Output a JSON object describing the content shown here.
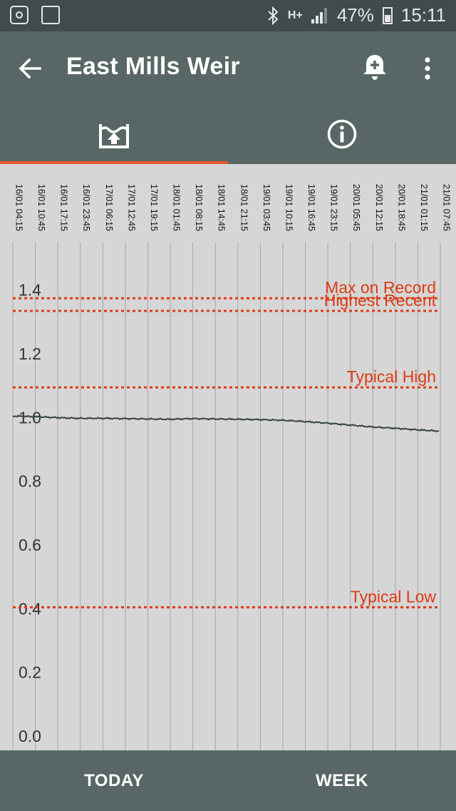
{
  "status_bar": {
    "left_icons": [
      "instagram-icon",
      "email-alert-icon"
    ],
    "right_icons": [
      "bluetooth-icon",
      "hplus-data-icon",
      "signal-icon",
      "battery-icon"
    ],
    "network": "H+",
    "battery": "47%",
    "time": "15:11"
  },
  "app_bar": {
    "title": "East Mills Weir",
    "back_icon": "arrow-back-icon",
    "alert_icon": "bell-plus-icon",
    "menu_icon": "more-vert-icon"
  },
  "tabs": [
    {
      "icon": "water-level-icon",
      "selected": true
    },
    {
      "icon": "info-icon",
      "selected": false
    }
  ],
  "colors": {
    "app_bar": "#586766",
    "status_bar": "#3f4b4d",
    "accent": "#e2572b",
    "threshold": "#dd3a12",
    "series": "#36433f",
    "chart_bg": "#d6d6d6"
  },
  "chart_data": {
    "type": "line",
    "x_ticks": [
      "16/01 04:15",
      "16/01 10:45",
      "16/01 17:15",
      "16/01 23:45",
      "17/01 06:15",
      "17/01 12:45",
      "17/01 19:15",
      "18/01 01:45",
      "18/01 08:15",
      "18/01 14:45",
      "18/01 21:15",
      "19/01 03:45",
      "19/01 10:15",
      "19/01 16:45",
      "19/01 23:15",
      "20/01 05:45",
      "20/01 12:15",
      "20/01 18:45",
      "21/01 01:15",
      "21/01 07:45"
    ],
    "ylim": [
      0,
      1.5
    ],
    "y_ticks": [
      "0.0",
      "0.2",
      "0.4",
      "0.6",
      "0.8",
      "1.0",
      "1.2",
      "1.4"
    ],
    "grid": "vertical",
    "series": [
      {
        "x": [
          "16/01 04:15",
          "16/01 10:45",
          "16/01 17:15",
          "16/01 23:45",
          "17/01 06:15",
          "17/01 12:45",
          "17/01 19:15",
          "18/01 01:45",
          "18/01 08:15",
          "18/01 14:45",
          "18/01 21:15",
          "19/01 03:45",
          "19/01 10:15",
          "19/01 16:45",
          "19/01 23:15",
          "20/01 05:45",
          "20/01 12:15",
          "20/01 18:45",
          "21/01 01:15",
          "21/01 07:45"
        ],
        "values": [
          1.0,
          0.998,
          0.995,
          0.993,
          0.993,
          0.992,
          0.991,
          0.99,
          0.992,
          0.991,
          0.99,
          0.989,
          0.987,
          0.983,
          0.978,
          0.972,
          0.966,
          0.962,
          0.957,
          0.953
        ]
      }
    ],
    "thresholds": [
      {
        "label": "Max on Record",
        "value": 1.37
      },
      {
        "label": "Highest Recent",
        "value": 1.33
      },
      {
        "label": "Typical High",
        "value": 1.09
      },
      {
        "label": "Typical Low",
        "value": 0.4
      }
    ]
  },
  "bottom_nav": {
    "today": "TODAY",
    "week": "WEEK"
  }
}
